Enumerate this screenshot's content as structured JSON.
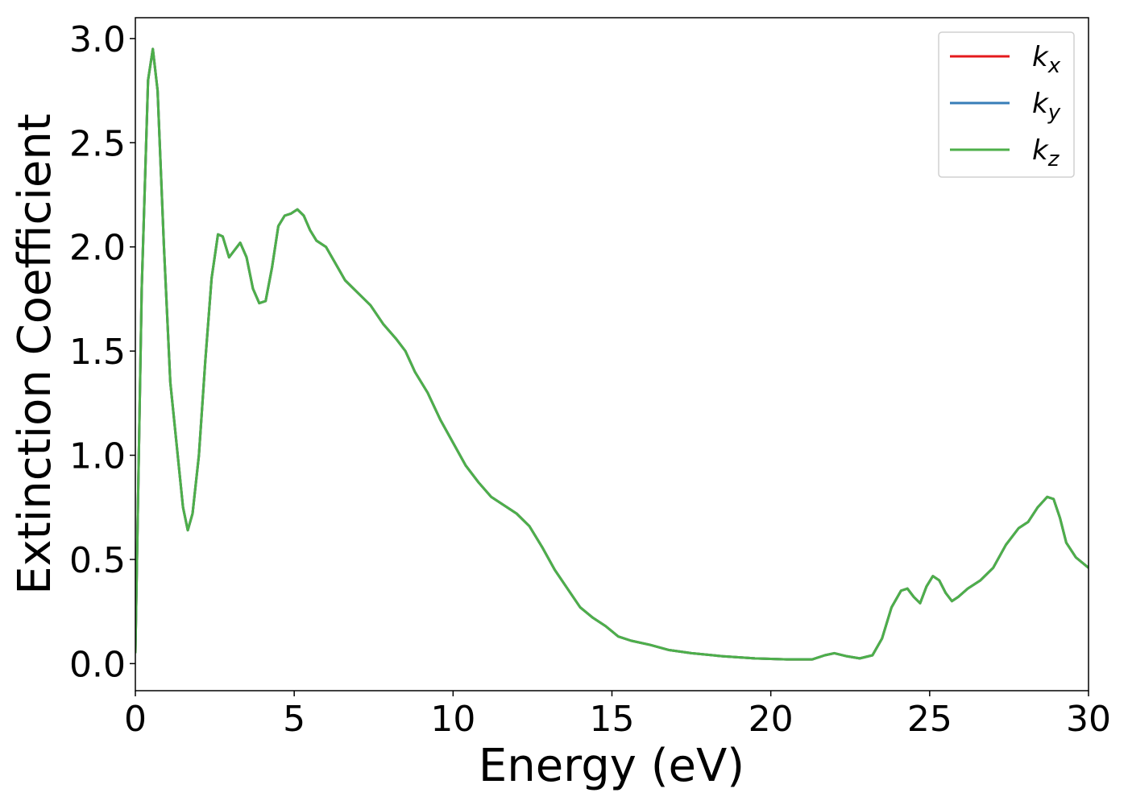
{
  "chart_data": {
    "type": "line",
    "xlabel": "Energy (eV)",
    "ylabel": "Extinction Coefficient",
    "x": [
      0,
      0.2,
      0.4,
      0.55,
      0.7,
      0.9,
      1.1,
      1.3,
      1.5,
      1.65,
      1.8,
      2.0,
      2.2,
      2.4,
      2.6,
      2.75,
      2.95,
      3.1,
      3.3,
      3.5,
      3.7,
      3.9,
      4.1,
      4.3,
      4.5,
      4.7,
      4.9,
      5.1,
      5.3,
      5.5,
      5.7,
      6.0,
      6.3,
      6.6,
      7.0,
      7.4,
      7.8,
      8.2,
      8.5,
      8.8,
      9.2,
      9.6,
      10.0,
      10.4,
      10.8,
      11.2,
      11.6,
      12.0,
      12.4,
      12.8,
      13.2,
      13.6,
      14.0,
      14.4,
      14.8,
      15.2,
      15.6,
      16.2,
      16.8,
      17.5,
      18.5,
      19.5,
      20.5,
      21.3,
      21.7,
      22.0,
      22.4,
      22.8,
      23.2,
      23.5,
      23.8,
      24.1,
      24.3,
      24.5,
      24.7,
      24.9,
      25.1,
      25.3,
      25.5,
      25.7,
      25.9,
      26.2,
      26.6,
      27.0,
      27.4,
      27.8,
      28.1,
      28.4,
      28.7,
      28.9,
      29.1,
      29.3,
      29.6,
      30.0
    ],
    "series": [
      {
        "name": "kx",
        "color": "#e41a1c",
        "values": [
          0.05,
          1.8,
          2.8,
          2.95,
          2.75,
          2.0,
          1.35,
          1.05,
          0.75,
          0.64,
          0.72,
          1.0,
          1.45,
          1.85,
          2.06,
          2.05,
          1.95,
          1.98,
          2.02,
          1.95,
          1.8,
          1.73,
          1.74,
          1.9,
          2.1,
          2.15,
          2.16,
          2.18,
          2.15,
          2.08,
          2.03,
          2.0,
          1.92,
          1.84,
          1.78,
          1.72,
          1.63,
          1.56,
          1.5,
          1.4,
          1.3,
          1.17,
          1.06,
          0.95,
          0.87,
          0.8,
          0.76,
          0.72,
          0.66,
          0.56,
          0.45,
          0.36,
          0.27,
          0.22,
          0.18,
          0.13,
          0.11,
          0.09,
          0.065,
          0.05,
          0.035,
          0.025,
          0.02,
          0.02,
          0.04,
          0.05,
          0.035,
          0.025,
          0.04,
          0.12,
          0.27,
          0.35,
          0.36,
          0.32,
          0.29,
          0.37,
          0.42,
          0.4,
          0.34,
          0.3,
          0.32,
          0.36,
          0.4,
          0.46,
          0.57,
          0.65,
          0.68,
          0.75,
          0.8,
          0.79,
          0.7,
          0.58,
          0.51,
          0.46
        ]
      },
      {
        "name": "ky",
        "color": "#377eb8",
        "values": [
          0.05,
          1.8,
          2.8,
          2.95,
          2.75,
          2.0,
          1.35,
          1.05,
          0.75,
          0.64,
          0.72,
          1.0,
          1.45,
          1.85,
          2.06,
          2.05,
          1.95,
          1.98,
          2.02,
          1.95,
          1.8,
          1.73,
          1.74,
          1.9,
          2.1,
          2.15,
          2.16,
          2.18,
          2.15,
          2.08,
          2.03,
          2.0,
          1.92,
          1.84,
          1.78,
          1.72,
          1.63,
          1.56,
          1.5,
          1.4,
          1.3,
          1.17,
          1.06,
          0.95,
          0.87,
          0.8,
          0.76,
          0.72,
          0.66,
          0.56,
          0.45,
          0.36,
          0.27,
          0.22,
          0.18,
          0.13,
          0.11,
          0.09,
          0.065,
          0.05,
          0.035,
          0.025,
          0.02,
          0.02,
          0.04,
          0.05,
          0.035,
          0.025,
          0.04,
          0.12,
          0.27,
          0.35,
          0.36,
          0.32,
          0.29,
          0.37,
          0.42,
          0.4,
          0.34,
          0.3,
          0.32,
          0.36,
          0.4,
          0.46,
          0.57,
          0.65,
          0.68,
          0.75,
          0.8,
          0.79,
          0.7,
          0.58,
          0.51,
          0.46
        ]
      },
      {
        "name": "kz",
        "color": "#4daf4a",
        "values": [
          0.05,
          1.8,
          2.8,
          2.95,
          2.75,
          2.0,
          1.35,
          1.05,
          0.75,
          0.64,
          0.72,
          1.0,
          1.45,
          1.85,
          2.06,
          2.05,
          1.95,
          1.98,
          2.02,
          1.95,
          1.8,
          1.73,
          1.74,
          1.9,
          2.1,
          2.15,
          2.16,
          2.18,
          2.15,
          2.08,
          2.03,
          2.0,
          1.92,
          1.84,
          1.78,
          1.72,
          1.63,
          1.56,
          1.5,
          1.4,
          1.3,
          1.17,
          1.06,
          0.95,
          0.87,
          0.8,
          0.76,
          0.72,
          0.66,
          0.56,
          0.45,
          0.36,
          0.27,
          0.22,
          0.18,
          0.13,
          0.11,
          0.09,
          0.065,
          0.05,
          0.035,
          0.025,
          0.02,
          0.02,
          0.04,
          0.05,
          0.035,
          0.025,
          0.04,
          0.12,
          0.27,
          0.35,
          0.36,
          0.32,
          0.29,
          0.37,
          0.42,
          0.4,
          0.34,
          0.3,
          0.32,
          0.36,
          0.4,
          0.46,
          0.57,
          0.65,
          0.68,
          0.75,
          0.8,
          0.79,
          0.7,
          0.58,
          0.51,
          0.46
        ]
      }
    ],
    "xlim": [
      0,
      30
    ],
    "xticks": [
      0,
      5,
      10,
      15,
      20,
      25,
      30
    ],
    "ylim": [
      -0.13,
      3.1
    ],
    "yticks": [
      {
        "value": 0,
        "label": "0.0"
      },
      0.5,
      {
        "value": 1,
        "label": "1.0"
      },
      1.5,
      {
        "value": 2,
        "label": "2.0"
      },
      2.5,
      {
        "value": 3,
        "label": "3.0"
      }
    ],
    "grid": false,
    "legend": "upper right"
  }
}
